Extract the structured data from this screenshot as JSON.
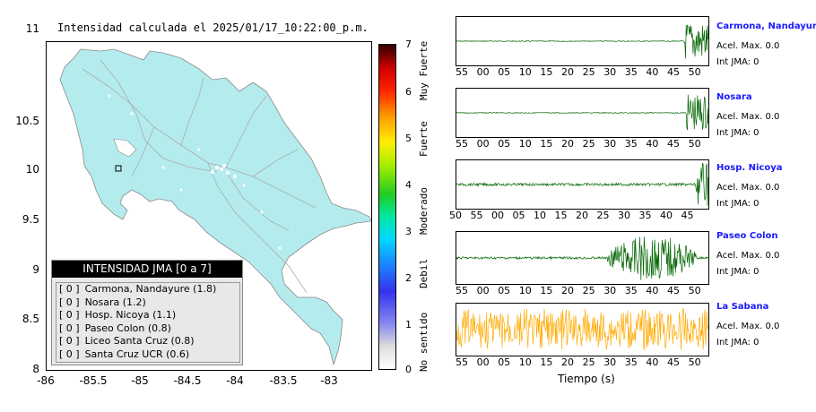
{
  "map": {
    "title": "Intensidad calculada el 2025/01/17_10:22:00_p.m.",
    "y_ticks": [
      "11",
      "10.5",
      "10",
      "9.5",
      "9",
      "8.5",
      "8"
    ],
    "x_ticks": [
      "-86",
      "-85.5",
      "-85",
      "-84.5",
      "-84",
      "-83.5",
      "-83"
    ],
    "land_color": "#b4ecee",
    "legend": {
      "header": "INTENSIDAD JMA [0 a 7]",
      "rows": [
        {
          "bracket": "[ 0 ]",
          "label": "Carmona, Nandayure (1.8)"
        },
        {
          "bracket": "[ 0 ]",
          "label": "Nosara (1.2)"
        },
        {
          "bracket": "[ 0 ]",
          "label": "Hosp. Nicoya (1.1)"
        },
        {
          "bracket": "[ 0 ]",
          "label": "Paseo Colon (0.8)"
        },
        {
          "bracket": "[ 0 ]",
          "label": "Liceo Santa Cruz (0.8)"
        },
        {
          "bracket": "[ 0 ]",
          "label": "Santa Cruz UCR (0.6)"
        }
      ]
    }
  },
  "colorbar": {
    "numbers": [
      "7",
      "6",
      "5",
      "4",
      "3",
      "2",
      "1",
      "0"
    ],
    "labels": [
      "Muy Fuerte",
      "Fuerte",
      "Moderado",
      "Debil",
      "No sentido"
    ]
  },
  "waveforms": {
    "x_axis_title": "Tiempo (s)",
    "panels": [
      {
        "station": "Carmona, Nandayure",
        "acel": "Acel. Max. 0.0",
        "int": "Int JMA: 0",
        "color": "#006600",
        "ticks": [
          "55",
          "00",
          "05",
          "10",
          "15",
          "20",
          "25",
          "30",
          "35",
          "40",
          "45",
          "50"
        ]
      },
      {
        "station": "Nosara",
        "acel": "Acel. Max. 0.0",
        "int": "Int JMA: 0",
        "color": "#006600",
        "ticks": [
          "55",
          "00",
          "05",
          "10",
          "15",
          "20",
          "25",
          "30",
          "35",
          "40",
          "45",
          "50"
        ]
      },
      {
        "station": "Hosp. Nicoya",
        "acel": "Acel. Max. 0.0",
        "int": "Int JMA: 0",
        "color": "#006600",
        "ticks": [
          "50",
          "55",
          "00",
          "05",
          "10",
          "15",
          "20",
          "25",
          "30",
          "35",
          "40",
          "45"
        ]
      },
      {
        "station": "Paseo Colon",
        "acel": "Acel. Max. 0.0",
        "int": "Int JMA: 0",
        "color": "#006600",
        "ticks": [
          "55",
          "00",
          "05",
          "10",
          "15",
          "20",
          "25",
          "30",
          "35",
          "40",
          "45",
          "50"
        ]
      },
      {
        "station": "La Sabana",
        "acel": "Acel. Max. 0.0",
        "int": "Int JMA: 0",
        "color": "#ffaa00",
        "ticks": [
          "55",
          "00",
          "05",
          "10",
          "15",
          "20",
          "25",
          "30",
          "35",
          "40",
          "45",
          "50"
        ]
      }
    ]
  }
}
